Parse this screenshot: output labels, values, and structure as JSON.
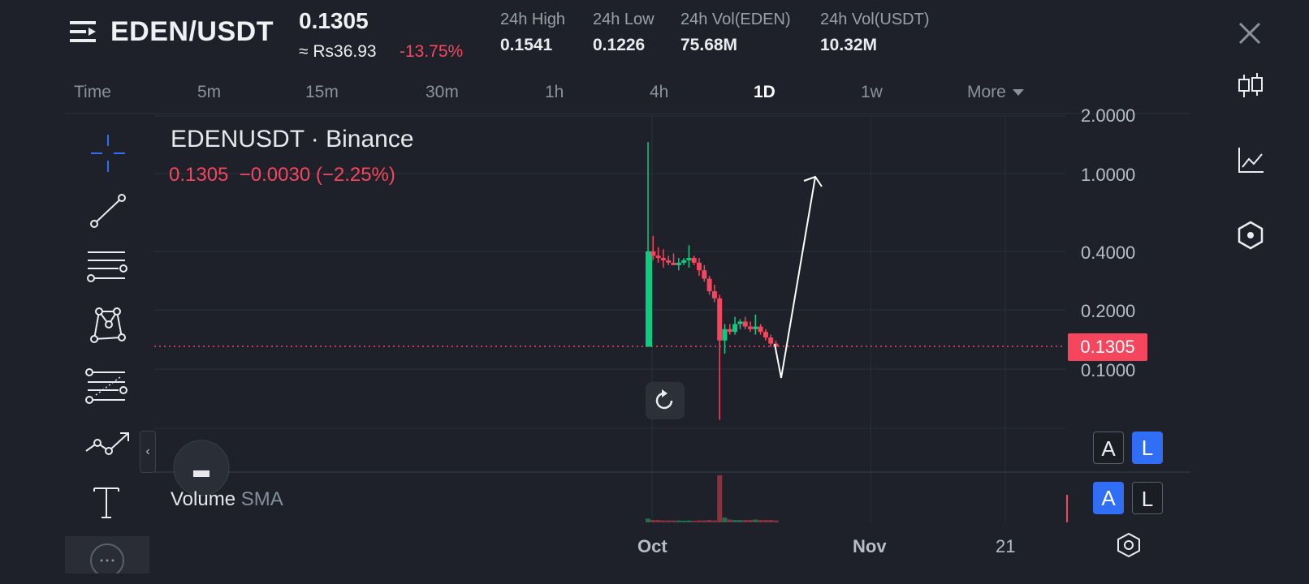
{
  "header": {
    "pair": "EDEN/USDT",
    "price": "0.1305",
    "price_local": "≈ Rs36.93",
    "change_pct": "-13.75%",
    "stats": [
      {
        "label": "24h High",
        "value": "0.1541"
      },
      {
        "label": "24h Low",
        "value": "0.1226"
      },
      {
        "label": "24h Vol(EDEN)",
        "value": "75.68M"
      },
      {
        "label": "24h Vol(USDT)",
        "value": "10.32M"
      }
    ]
  },
  "intervals": [
    "Time",
    "5m",
    "15m",
    "30m",
    "1h",
    "4h",
    "1D",
    "1w",
    "More"
  ],
  "active_interval": "1D",
  "legend": {
    "title": "EDENUSDT · Binance",
    "values": "0.1305  −0.0030 (−2.25%)"
  },
  "price_axis": {
    "labels": [
      "2.0000",
      "1.0000",
      "0.4000",
      "0.2000",
      "0.1000"
    ],
    "current_price": "0.1305"
  },
  "time_axis": [
    "Oct",
    "Nov",
    "21"
  ],
  "volume": {
    "label": "Volume",
    "indicator": "SMA"
  },
  "scale_buttons": {
    "row1": [
      "A",
      "L"
    ],
    "row2": [
      "A",
      "L"
    ]
  },
  "colors": {
    "up": "#0ecb81",
    "down": "#f6465d",
    "accent": "#2f6ef5",
    "background": "#1e2129"
  },
  "drawing_tools": [
    "crosshair-icon",
    "trend-line-icon",
    "horizontal-lines-icon",
    "pattern-icon",
    "fib-icon",
    "path-icon",
    "text-icon"
  ],
  "right_toolbar": [
    "candlestick-icon",
    "indicator-chart-icon",
    "hexagon-settings-icon"
  ],
  "chart_data": {
    "type": "candlestick",
    "scale": "log",
    "ylim": [
      0.05,
      2.0
    ],
    "candles": [
      {
        "o": 0.13,
        "h": 1.45,
        "l": 0.13,
        "c": 0.4,
        "up": true
      },
      {
        "o": 0.4,
        "h": 0.48,
        "l": 0.36,
        "c": 0.38,
        "up": false
      },
      {
        "o": 0.38,
        "h": 0.42,
        "l": 0.35,
        "c": 0.37,
        "up": false
      },
      {
        "o": 0.37,
        "h": 0.41,
        "l": 0.33,
        "c": 0.36,
        "up": false
      },
      {
        "o": 0.36,
        "h": 0.38,
        "l": 0.34,
        "c": 0.35,
        "up": false
      },
      {
        "o": 0.35,
        "h": 0.39,
        "l": 0.34,
        "c": 0.34,
        "up": false
      },
      {
        "o": 0.34,
        "h": 0.37,
        "l": 0.32,
        "c": 0.35,
        "up": true
      },
      {
        "o": 0.35,
        "h": 0.37,
        "l": 0.34,
        "c": 0.36,
        "up": true
      },
      {
        "o": 0.36,
        "h": 0.43,
        "l": 0.33,
        "c": 0.37,
        "up": true
      },
      {
        "o": 0.37,
        "h": 0.38,
        "l": 0.34,
        "c": 0.35,
        "up": false
      },
      {
        "o": 0.35,
        "h": 0.37,
        "l": 0.3,
        "c": 0.32,
        "up": false
      },
      {
        "o": 0.32,
        "h": 0.34,
        "l": 0.28,
        "c": 0.29,
        "up": false
      },
      {
        "o": 0.29,
        "h": 0.3,
        "l": 0.24,
        "c": 0.25,
        "up": false
      },
      {
        "o": 0.25,
        "h": 0.27,
        "l": 0.22,
        "c": 0.23,
        "up": false
      },
      {
        "o": 0.23,
        "h": 0.24,
        "l": 0.055,
        "c": 0.14,
        "up": false
      },
      {
        "o": 0.14,
        "h": 0.17,
        "l": 0.12,
        "c": 0.16,
        "up": true
      },
      {
        "o": 0.16,
        "h": 0.17,
        "l": 0.15,
        "c": 0.155,
        "up": false
      },
      {
        "o": 0.155,
        "h": 0.185,
        "l": 0.15,
        "c": 0.17,
        "up": true
      },
      {
        "o": 0.17,
        "h": 0.18,
        "l": 0.16,
        "c": 0.175,
        "up": true
      },
      {
        "o": 0.175,
        "h": 0.185,
        "l": 0.16,
        "c": 0.165,
        "up": false
      },
      {
        "o": 0.165,
        "h": 0.175,
        "l": 0.155,
        "c": 0.16,
        "up": false
      },
      {
        "o": 0.16,
        "h": 0.19,
        "l": 0.15,
        "c": 0.165,
        "up": true
      },
      {
        "o": 0.165,
        "h": 0.17,
        "l": 0.15,
        "c": 0.155,
        "up": false
      },
      {
        "o": 0.155,
        "h": 0.16,
        "l": 0.14,
        "c": 0.145,
        "up": false
      },
      {
        "o": 0.145,
        "h": 0.15,
        "l": 0.13,
        "c": 0.135,
        "up": false
      },
      {
        "o": 0.135,
        "h": 0.14,
        "l": 0.12,
        "c": 0.1305,
        "up": false
      }
    ],
    "volumes": [
      {
        "v": 0.08,
        "up": true
      },
      {
        "v": 0.05,
        "up": false
      },
      {
        "v": 0.05,
        "up": false
      },
      {
        "v": 0.04,
        "up": false
      },
      {
        "v": 0.04,
        "up": false
      },
      {
        "v": 0.04,
        "up": false
      },
      {
        "v": 0.04,
        "up": true
      },
      {
        "v": 0.03,
        "up": true
      },
      {
        "v": 0.04,
        "up": true
      },
      {
        "v": 0.03,
        "up": false
      },
      {
        "v": 0.04,
        "up": false
      },
      {
        "v": 0.04,
        "up": false
      },
      {
        "v": 0.05,
        "up": false
      },
      {
        "v": 0.04,
        "up": false
      },
      {
        "v": 1.0,
        "up": false
      },
      {
        "v": 0.1,
        "up": true
      },
      {
        "v": 0.06,
        "up": false
      },
      {
        "v": 0.05,
        "up": true
      },
      {
        "v": 0.05,
        "up": true
      },
      {
        "v": 0.05,
        "up": false
      },
      {
        "v": 0.05,
        "up": false
      },
      {
        "v": 0.06,
        "up": true
      },
      {
        "v": 0.05,
        "up": false
      },
      {
        "v": 0.05,
        "up": false
      },
      {
        "v": 0.05,
        "up": false
      },
      {
        "v": 0.04,
        "up": false
      }
    ],
    "drawing": {
      "type": "arrow",
      "points": [
        {
          "price": 0.1305
        },
        {
          "price": 0.085
        },
        {
          "price": 1.0
        }
      ]
    }
  }
}
